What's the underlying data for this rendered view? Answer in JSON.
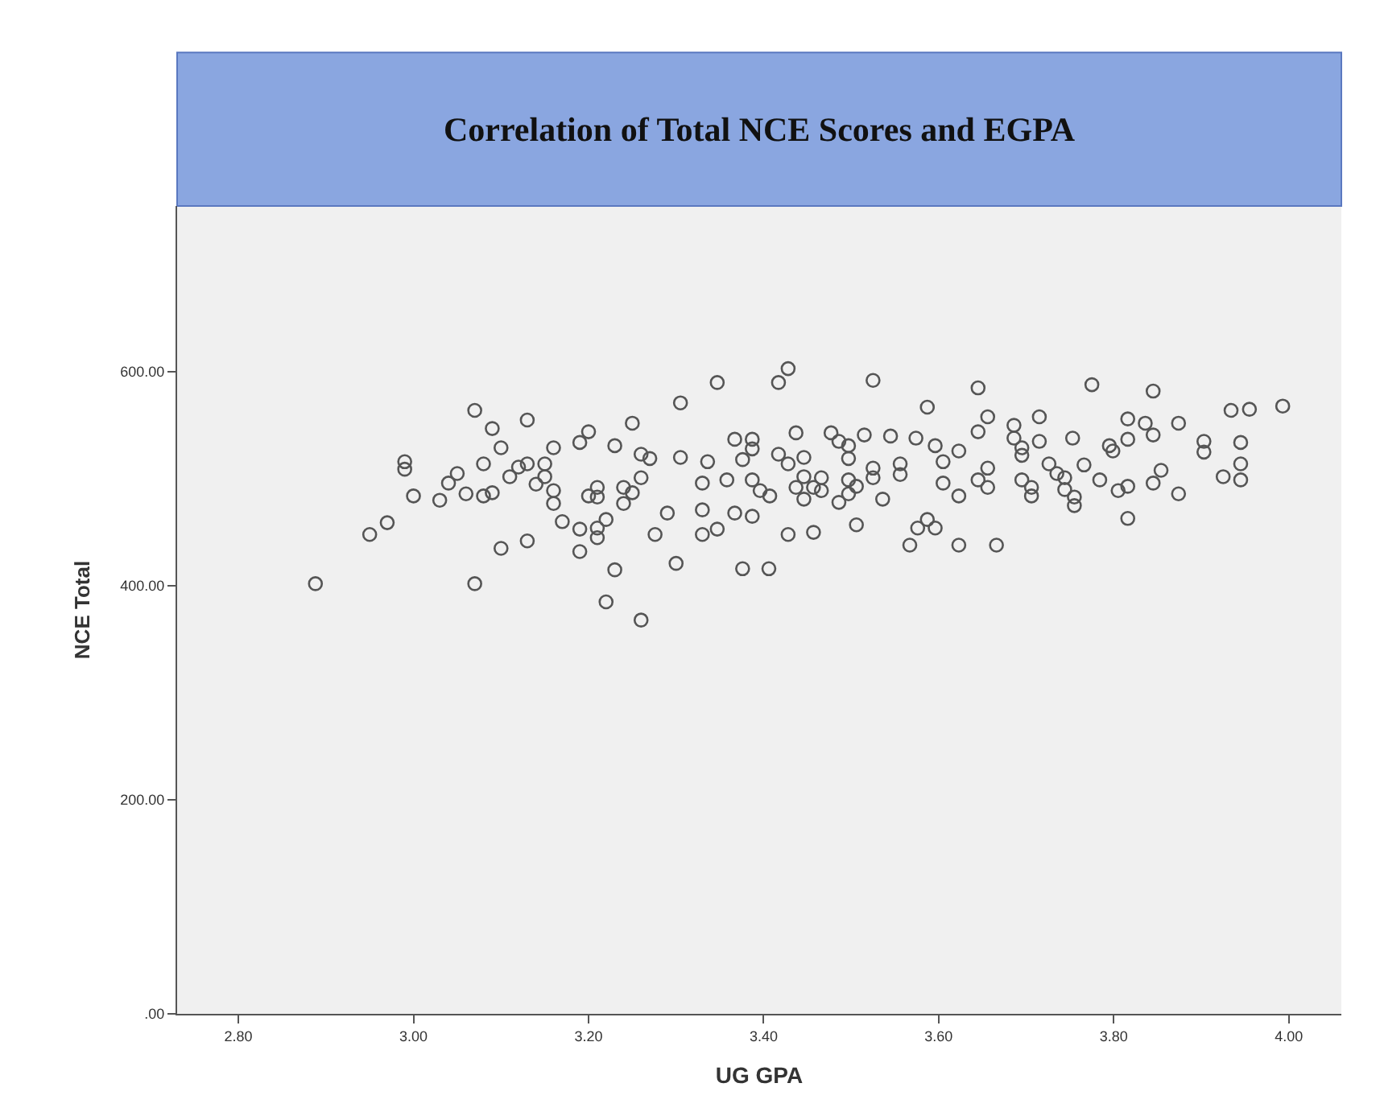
{
  "chart_data": {
    "type": "scatter",
    "title": "Correlation of Total NCE Scores and EGPA",
    "xlabel": "UG GPA",
    "ylabel": "NCE Total",
    "x": [
      2.888,
      2.95,
      2.97,
      2.99,
      2.99,
      3.0,
      3.03,
      3.04,
      3.05,
      3.06,
      3.07,
      3.07,
      3.08,
      3.08,
      3.09,
      3.09,
      3.1,
      3.1,
      3.11,
      3.12,
      3.13,
      3.13,
      3.13,
      3.14,
      3.15,
      3.15,
      3.16,
      3.16,
      3.16,
      3.17,
      3.19,
      3.2,
      3.19,
      3.19,
      3.2,
      3.21,
      3.21,
      3.21,
      3.21,
      3.22,
      3.23,
      3.23,
      3.22,
      3.24,
      3.25,
      3.24,
      3.25,
      3.26,
      3.26,
      3.26,
      3.27,
      3.276,
      3.29,
      3.3,
      3.305,
      3.305,
      3.33,
      3.33,
      3.33,
      3.336,
      3.347,
      3.347,
      3.358,
      3.367,
      3.367,
      3.376,
      3.376,
      3.387,
      3.387,
      3.387,
      3.387,
      3.396,
      3.407,
      3.406,
      3.417,
      3.428,
      3.417,
      3.428,
      3.428,
      3.437,
      3.437,
      3.446,
      3.446,
      3.446,
      3.457,
      3.457,
      3.466,
      3.466,
      3.477,
      3.486,
      3.497,
      3.486,
      3.497,
      3.497,
      3.497,
      3.506,
      3.506,
      3.515,
      3.525,
      3.525,
      3.525,
      3.536,
      3.545,
      3.556,
      3.556,
      3.567,
      3.574,
      3.576,
      3.587,
      3.596,
      3.587,
      3.596,
      3.605,
      3.605,
      3.623,
      3.623,
      3.623,
      3.645,
      3.645,
      3.656,
      3.656,
      3.645,
      3.656,
      3.666,
      3.686,
      3.686,
      3.695,
      3.695,
      3.695,
      3.706,
      3.706,
      3.715,
      3.715,
      3.726,
      3.735,
      3.744,
      3.744,
      3.753,
      3.755,
      3.755,
      3.766,
      3.775,
      3.784,
      3.795,
      3.799,
      3.805,
      3.816,
      3.816,
      3.816,
      3.816,
      3.836,
      3.845,
      3.845,
      3.854,
      3.845,
      3.874,
      3.874,
      3.903,
      3.903,
      3.925,
      3.934,
      3.955,
      3.945,
      3.945,
      3.945,
      3.993
    ],
    "values": [
      402,
      448,
      459,
      516,
      509,
      484,
      480,
      496,
      505,
      486,
      564,
      402,
      514,
      484,
      487,
      547,
      529,
      435,
      502,
      511,
      555,
      442,
      514,
      495,
      514,
      502,
      529,
      489,
      477,
      460,
      534,
      544,
      453,
      432,
      484,
      492,
      483,
      454,
      445,
      462,
      531,
      415,
      385,
      492,
      487,
      477,
      552,
      523,
      501,
      368,
      519,
      448,
      468,
      421,
      571,
      520,
      496,
      471,
      448,
      516,
      590,
      453,
      499,
      537,
      468,
      518,
      416,
      537,
      528,
      499,
      465,
      489,
      484,
      416,
      590,
      603,
      523,
      514,
      448,
      543,
      492,
      520,
      502,
      481,
      492,
      450,
      501,
      489,
      543,
      535,
      531,
      478,
      486,
      519,
      499,
      493,
      457,
      541,
      592,
      510,
      501,
      481,
      540,
      514,
      504,
      438,
      538,
      454,
      462,
      454,
      567,
      531,
      516,
      496,
      526,
      484,
      438,
      585,
      544,
      558,
      510,
      499,
      492,
      438,
      550,
      538,
      529,
      522,
      499,
      492,
      484,
      558,
      535,
      514,
      505,
      501,
      490,
      538,
      483,
      475,
      513,
      588,
      499,
      531,
      526,
      489,
      556,
      537,
      493,
      463,
      552,
      582,
      541,
      508,
      496,
      552,
      486,
      535,
      525,
      502,
      564,
      565,
      534,
      514,
      499,
      568
    ],
    "color": "#555555",
    "marker": "circle",
    "xlim": [
      2.73,
      4.06
    ],
    "ylim": [
      0,
      755
    ],
    "xticks": [
      {
        "value": 2.8,
        "label": "2.80"
      },
      {
        "value": 3.0,
        "label": "3.00"
      },
      {
        "value": 3.2,
        "label": "3.20"
      },
      {
        "value": 3.4,
        "label": "3.40"
      },
      {
        "value": 3.6,
        "label": "3.60"
      },
      {
        "value": 3.8,
        "label": "3.80"
      },
      {
        "value": 4.0,
        "label": "4.00"
      }
    ],
    "yticks": [
      {
        "value": 0,
        "label": ".00"
      },
      {
        "value": 200,
        "label": "200.00"
      },
      {
        "value": 400,
        "label": "400.00"
      },
      {
        "value": 600,
        "label": "600.00"
      }
    ],
    "grid": false
  }
}
